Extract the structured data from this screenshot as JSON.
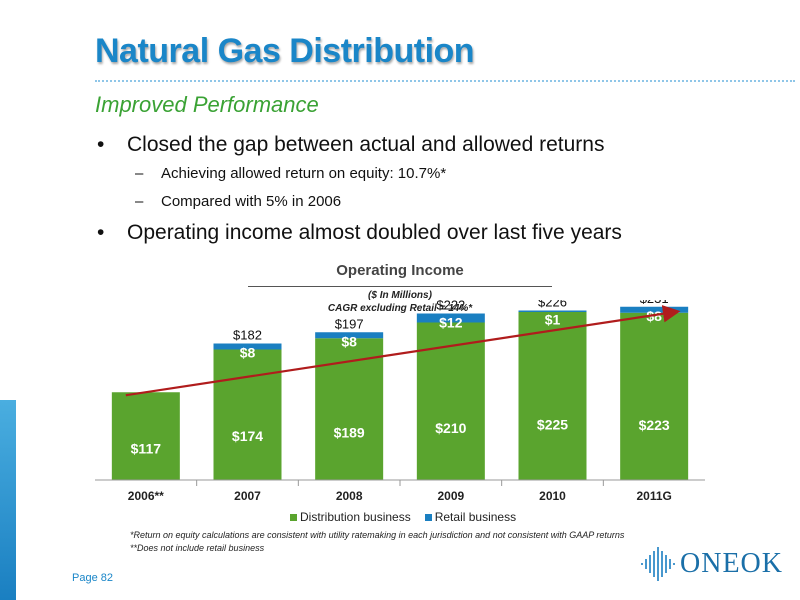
{
  "slide": {
    "title": "Natural Gas Distribution",
    "subtitle": "Improved Performance",
    "page_label": "Page 82",
    "bullets": [
      "Closed the gap between actual and allowed returns",
      "Operating income almost doubled over last five years"
    ],
    "sub_bullets": [
      "Achieving allowed return on equity: 10.7%*",
      "Compared with 5% in 2006"
    ],
    "footnotes": [
      "*Return on equity calculations are consistent with utility ratemaking in each jurisdiction and not consistent with GAAP returns",
      "**Does not include retail business"
    ],
    "logo_text": "ONEOK"
  },
  "chart_data": {
    "type": "bar",
    "stacked": true,
    "title": "Operating Income",
    "subtitle": "($ In Millions)",
    "annotation": "CAGR excluding Retail = 14%*",
    "categories": [
      "2006**",
      "2007",
      "2008",
      "2009",
      "2010",
      "2011G"
    ],
    "series": [
      {
        "name": "Distribution business",
        "color": "#5aa42e",
        "values": [
          117,
          174,
          189,
          210,
          225,
          223
        ],
        "labels": [
          "$117",
          "$174",
          "$189",
          "$210",
          "$225",
          "$223"
        ]
      },
      {
        "name": "Retail business",
        "color": "#1a7fc1",
        "values": [
          0,
          8,
          8,
          12,
          1,
          8
        ],
        "labels": [
          "",
          "$8",
          "$8",
          "$12",
          "$1",
          "$8"
        ]
      }
    ],
    "totals": [
      117,
      182,
      197,
      222,
      226,
      231
    ],
    "total_labels": [
      "",
      "$182",
      "$197",
      "$222",
      "$226",
      "$231"
    ],
    "trend_line_color": "#b01c1c",
    "ylim": [
      0,
      240
    ],
    "grid": false,
    "legend": "bottom"
  }
}
